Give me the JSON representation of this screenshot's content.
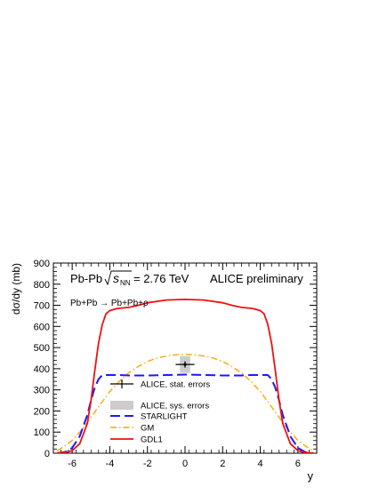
{
  "chart_data": {
    "type": "line",
    "xlabel": "y",
    "ylabel": "dσ/dy (mb)",
    "xlim": [
      -7,
      7
    ],
    "ylim": [
      0,
      900
    ],
    "x_ticks": [
      -6,
      -4,
      -2,
      0,
      2,
      4,
      6
    ],
    "y_ticks": [
      0,
      100,
      200,
      300,
      400,
      500,
      600,
      700,
      800,
      900
    ],
    "annotations": {
      "system_prefix": "Pb-Pb",
      "sqrt_s": "s",
      "sqrt_s_sub": "NN",
      "energy": "= 2.76 TeV",
      "collaboration": "ALICE preliminary",
      "reaction": "Pb+Pb → Pb+Pb+ρ"
    },
    "legend": {
      "position": "bottom-center",
      "entries": [
        {
          "label": "ALICE, stat. errors",
          "style": "marker"
        },
        {
          "label": "ALICE, sys. errors",
          "style": "box"
        },
        {
          "label": "STARLIGHT",
          "style": "dashed",
          "color": "#1a1aff"
        },
        {
          "label": "GM",
          "style": "dashdot",
          "color": "#ffa500"
        },
        {
          "label": "GDL1",
          "style": "solid",
          "color": "#ee1111"
        }
      ]
    },
    "data_point": {
      "x": 0,
      "y": 420,
      "x_err": 0.5,
      "stat_err": 15,
      "sys_low": 380,
      "sys_high": 460
    },
    "series": [
      {
        "name": "GDL1",
        "color": "#ee1111",
        "style": "solid",
        "x": [
          -6.8,
          -6.4,
          -6,
          -5.6,
          -5.2,
          -5,
          -4.8,
          -4.6,
          -4.4,
          -4.2,
          -4,
          -3.6,
          -3,
          -2.5,
          -2,
          -1,
          0,
          1,
          2,
          2.5,
          3,
          3.6,
          4,
          4.2,
          4.4,
          4.6,
          4.8,
          5,
          5.2,
          5.6,
          6,
          6.4,
          6.8
        ],
        "y": [
          1,
          3,
          12,
          45,
          140,
          250,
          390,
          520,
          610,
          660,
          675,
          685,
          690,
          700,
          712,
          725,
          728,
          725,
          712,
          700,
          690,
          685,
          675,
          660,
          610,
          520,
          390,
          250,
          140,
          45,
          12,
          3,
          1
        ]
      },
      {
        "name": "STARLIGHT",
        "color": "#1a1aff",
        "style": "dashed",
        "x": [
          -6.8,
          -6.4,
          -6,
          -5.6,
          -5.2,
          -5,
          -4.8,
          -4.6,
          -4.4,
          -4,
          -3.5,
          -3,
          -2,
          -1,
          0,
          1,
          2,
          3,
          3.5,
          4,
          4.4,
          4.6,
          4.8,
          5,
          5.2,
          5.6,
          6,
          6.4,
          6.8
        ],
        "y": [
          1,
          5,
          25,
          80,
          180,
          250,
          310,
          350,
          370,
          370,
          370,
          368,
          368,
          370,
          372,
          370,
          368,
          368,
          370,
          370,
          370,
          350,
          310,
          250,
          180,
          80,
          25,
          5,
          1
        ]
      },
      {
        "name": "GM",
        "color": "#ffa500",
        "style": "dashdot",
        "x": [
          -6.8,
          -6.5,
          -6,
          -5.5,
          -5,
          -4.5,
          -4,
          -3.5,
          -3,
          -2.5,
          -2,
          -1.5,
          -1,
          -0.5,
          0,
          0.5,
          1,
          1.5,
          2,
          2.5,
          3,
          3.5,
          4,
          4.5,
          5,
          5.5,
          6,
          6.5,
          6.8
        ],
        "y": [
          12,
          28,
          60,
          110,
          170,
          232,
          292,
          340,
          380,
          410,
          434,
          450,
          460,
          466,
          468,
          466,
          460,
          450,
          434,
          410,
          380,
          340,
          292,
          232,
          170,
          110,
          60,
          28,
          12
        ]
      }
    ]
  }
}
